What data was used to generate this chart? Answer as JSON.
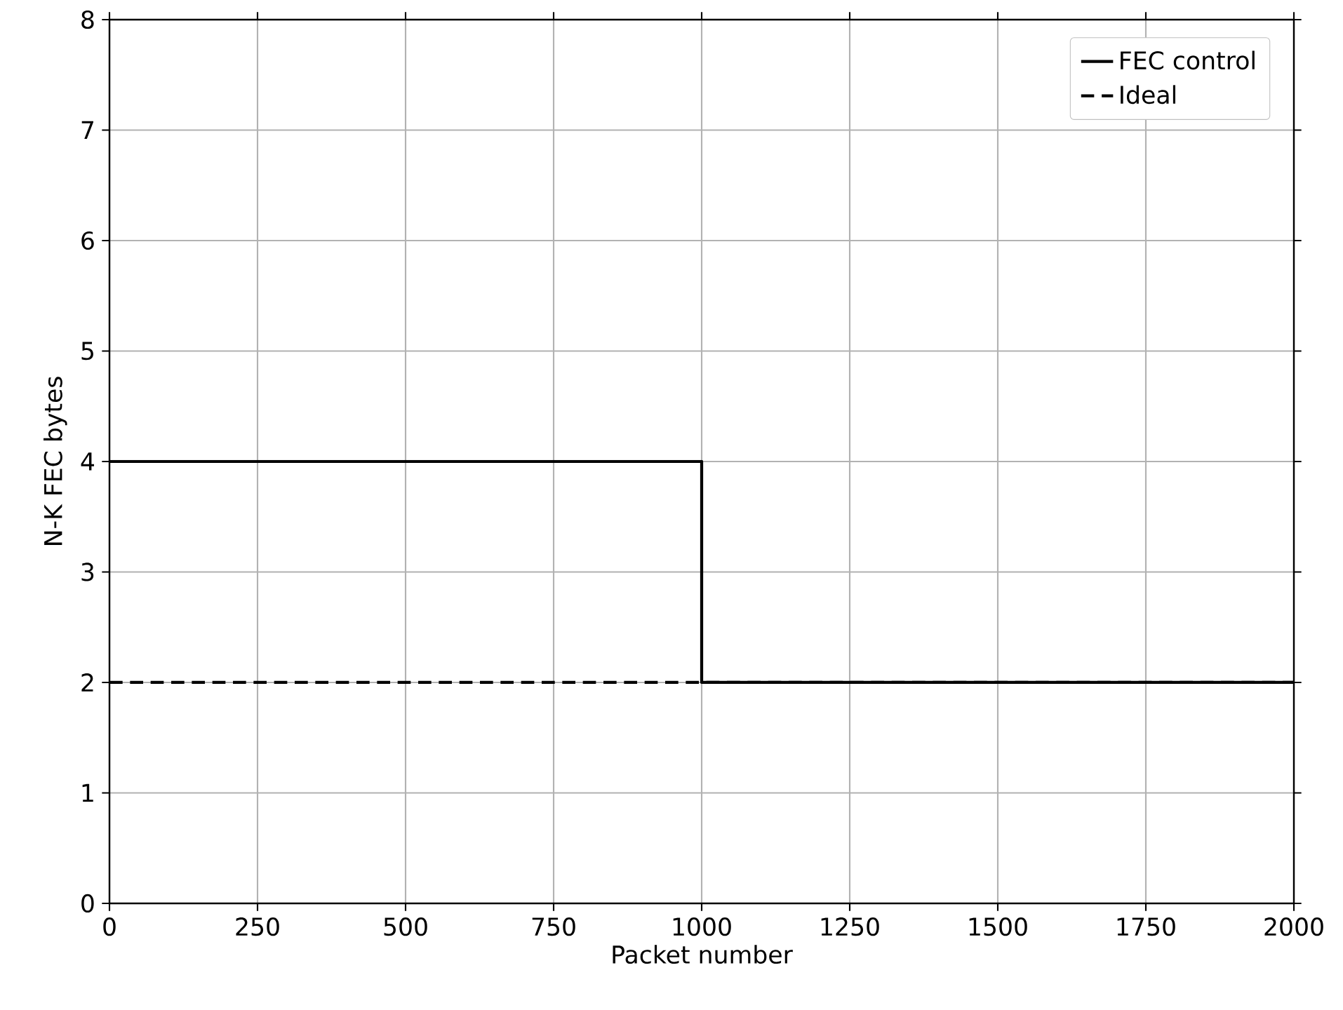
{
  "chart_data": {
    "type": "line",
    "xlabel": "Packet number",
    "ylabel": "N-K FEC bytes",
    "series": [
      {
        "name": "FEC control",
        "color": "#000000",
        "line_style": "solid",
        "x": [
          0,
          1000,
          1000,
          2000
        ],
        "values": [
          4,
          4,
          2,
          2
        ]
      },
      {
        "name": "Ideal",
        "color": "#000000",
        "line_style": "dashed",
        "x": [
          0,
          2000
        ],
        "values": [
          2,
          2
        ]
      }
    ],
    "xlim": [
      0,
      2000
    ],
    "ylim": [
      0,
      8
    ],
    "xticks": [
      0,
      250,
      500,
      750,
      1000,
      1250,
      1500,
      1750,
      2000
    ],
    "yticks": [
      0,
      1,
      2,
      3,
      4,
      5,
      6,
      7,
      8
    ],
    "grid": true,
    "legend": "top right",
    "marker": "none"
  }
}
